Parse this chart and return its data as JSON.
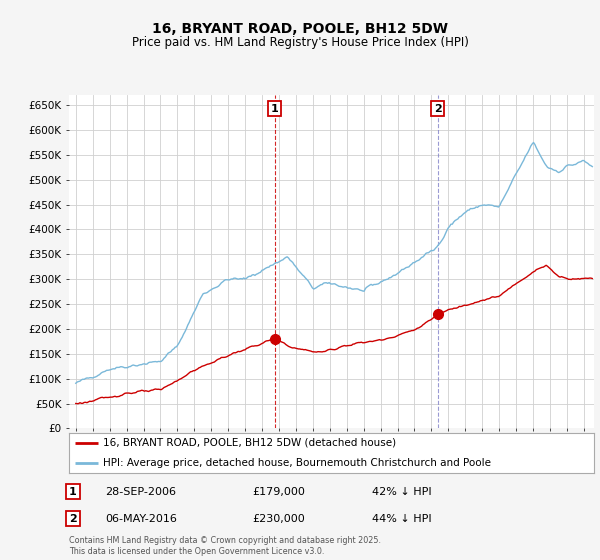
{
  "title": "16, BRYANT ROAD, POOLE, BH12 5DW",
  "subtitle": "Price paid vs. HM Land Registry's House Price Index (HPI)",
  "legend_line1": "16, BRYANT ROAD, POOLE, BH12 5DW (detached house)",
  "legend_line2": "HPI: Average price, detached house, Bournemouth Christchurch and Poole",
  "footnote": "Contains HM Land Registry data © Crown copyright and database right 2025.\nThis data is licensed under the Open Government Licence v3.0.",
  "transaction1_date": "28-SEP-2006",
  "transaction1_price": "£179,000",
  "transaction1_hpi": "42% ↓ HPI",
  "transaction1_year": 2006.75,
  "transaction1_value": 179000,
  "transaction2_date": "06-MAY-2016",
  "transaction2_price": "£230,000",
  "transaction2_hpi": "44% ↓ HPI",
  "transaction2_year": 2016.37,
  "transaction2_value": 230000,
  "ylim": [
    0,
    670000
  ],
  "yticks": [
    0,
    50000,
    100000,
    150000,
    200000,
    250000,
    300000,
    350000,
    400000,
    450000,
    500000,
    550000,
    600000,
    650000
  ],
  "color_hpi": "#7ab8d9",
  "color_price": "#cc0000",
  "bg_color": "#f5f5f5",
  "plot_bg": "#ffffff",
  "grid_color": "#d0d0d0"
}
